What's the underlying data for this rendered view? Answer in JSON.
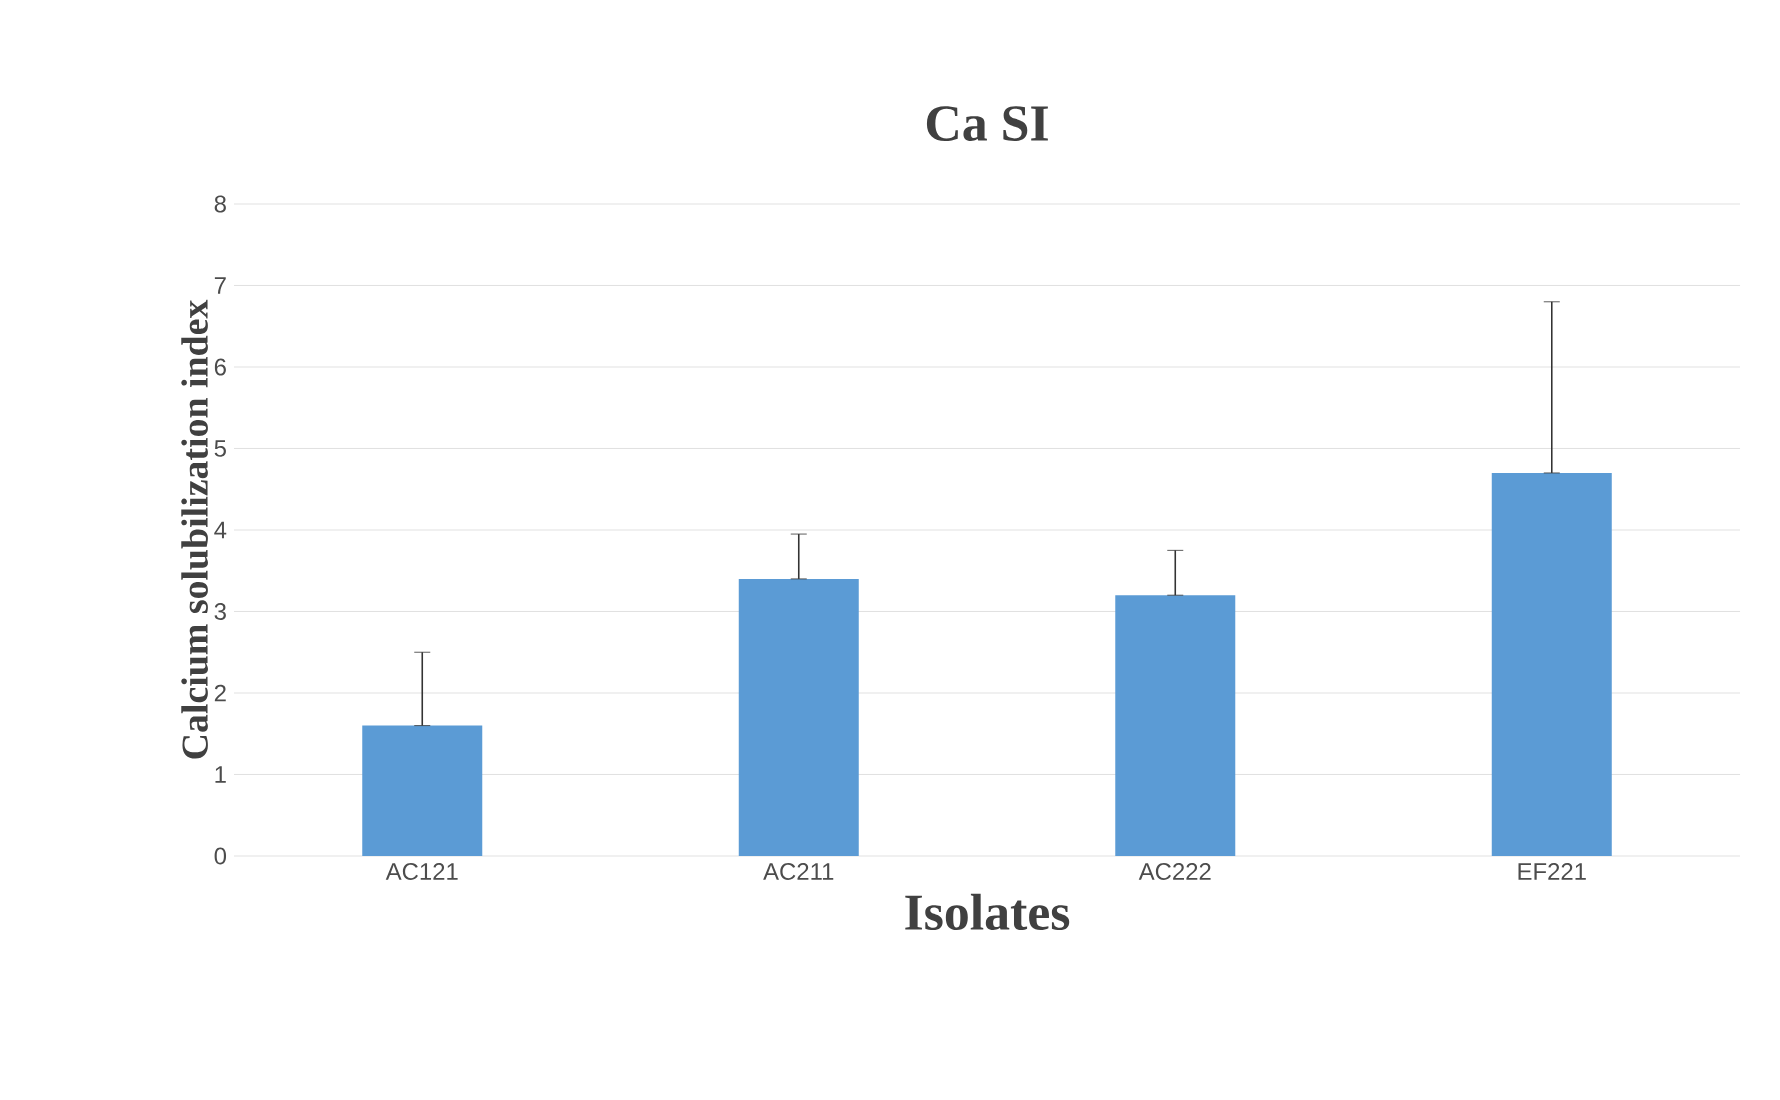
{
  "chart_data": {
    "type": "bar",
    "title": "Ca SI",
    "xlabel": "Isolates",
    "ylabel": "Calcium solubilization index",
    "categories": [
      "AC121",
      "AC211",
      "AC222",
      "EF221"
    ],
    "values": [
      1.6,
      3.4,
      3.2,
      4.7
    ],
    "errors": [
      [
        1.6,
        2.5
      ],
      [
        3.4,
        3.95
      ],
      [
        3.2,
        3.75
      ],
      [
        4.7,
        6.8
      ]
    ],
    "color": "#5b9bd5",
    "ylim": [
      0,
      8
    ],
    "yticks": [
      0,
      1,
      2,
      3,
      4,
      5,
      6,
      7,
      8
    ],
    "grid": "y"
  }
}
